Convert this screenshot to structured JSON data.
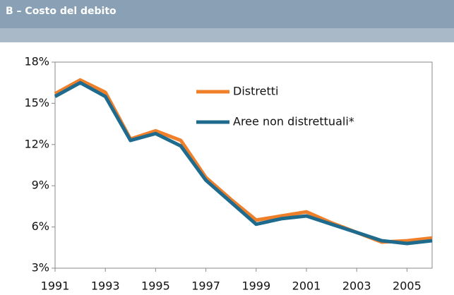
{
  "chart_data": {
    "type": "line",
    "title": "B – Costo del debito",
    "x": [
      1991,
      1992,
      1993,
      1994,
      1995,
      1996,
      1997,
      1998,
      1999,
      2000,
      2001,
      2002,
      2003,
      2004,
      2005,
      2006
    ],
    "series": [
      {
        "name": "Distretti",
        "color": "#f07f2a",
        "values": [
          15.7,
          16.7,
          15.8,
          12.4,
          13.0,
          12.3,
          9.6,
          8.0,
          6.5,
          6.8,
          7.1,
          6.3,
          5.6,
          4.9,
          5.0,
          5.2
        ]
      },
      {
        "name": "Aree non distrettuali*",
        "color": "#1f6b8e",
        "values": [
          15.5,
          16.5,
          15.5,
          12.3,
          12.8,
          11.9,
          9.4,
          7.8,
          6.2,
          6.6,
          6.8,
          6.2,
          5.6,
          5.0,
          4.8,
          5.0
        ]
      }
    ],
    "xlim": [
      1991,
      2006
    ],
    "xticks": [
      1991,
      1993,
      1995,
      1997,
      1999,
      2001,
      2003,
      2005
    ],
    "ylim": [
      3,
      18
    ],
    "yticks": [
      {
        "value": 3,
        "label": "3%"
      },
      {
        "value": 6,
        "label": "6%"
      },
      {
        "value": 9,
        "label": "9%"
      },
      {
        "value": 12,
        "label": "12%"
      },
      {
        "value": 15,
        "label": "15%"
      },
      {
        "value": 18,
        "label": "18%"
      }
    ]
  }
}
